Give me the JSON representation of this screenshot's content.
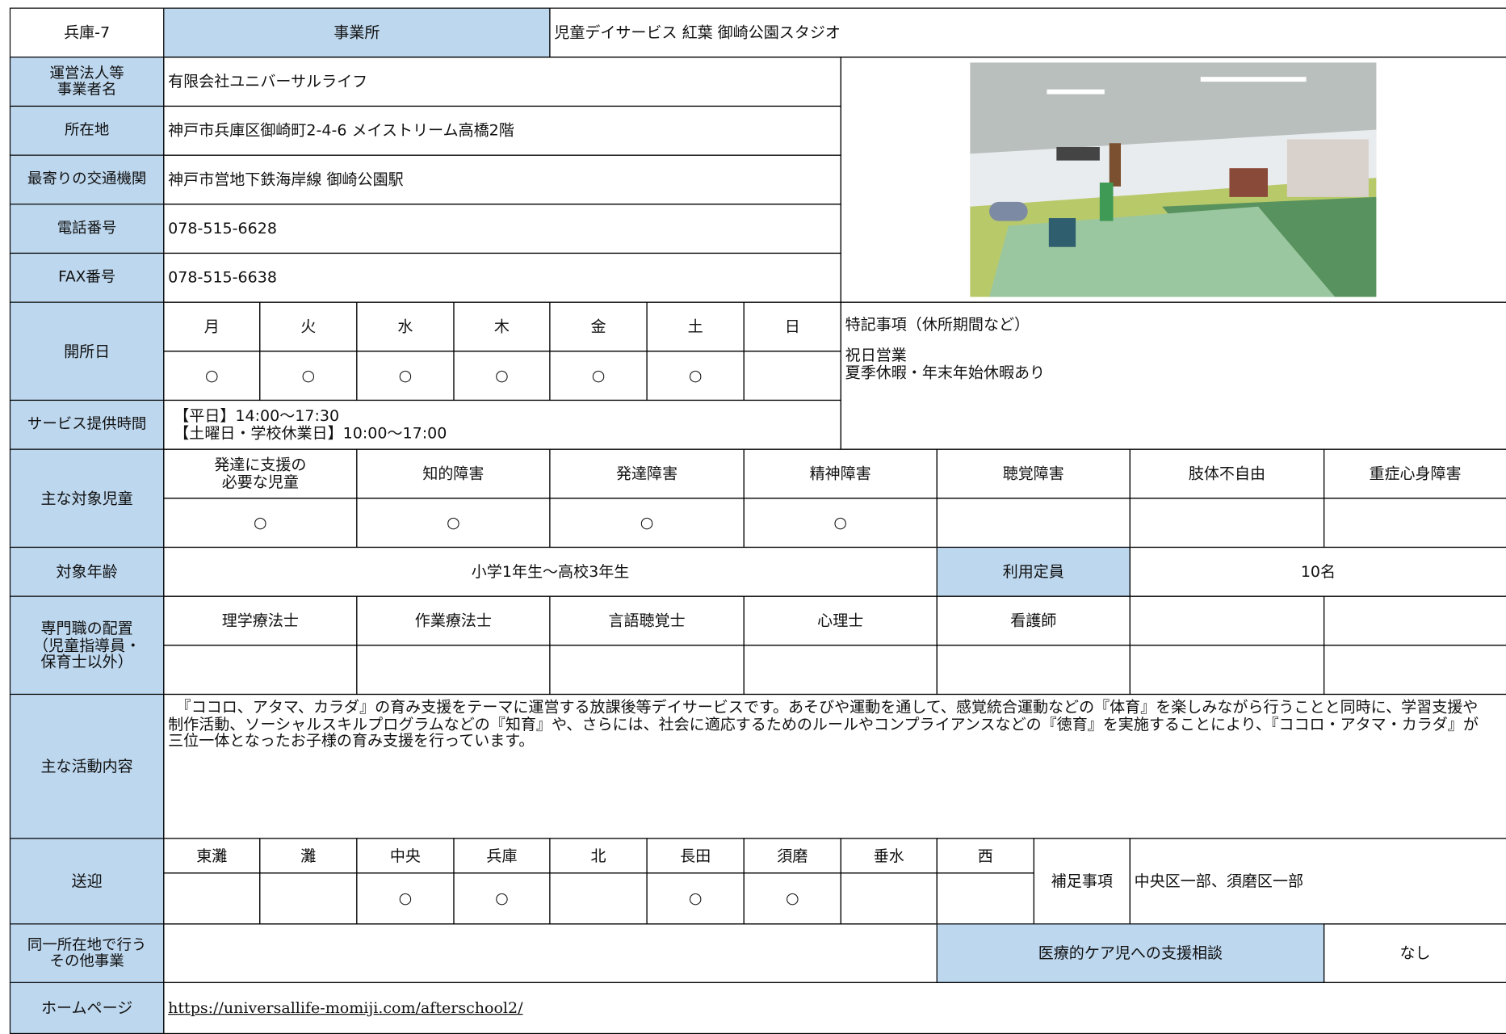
{
  "header": {
    "code": "兵庫-7",
    "label": "事業所",
    "name": "児童デイサービス 紅葉 御崎公園スタジオ"
  },
  "info": [
    {
      "label": "運営法人等\n事業者名",
      "value": "有限会社ユニバーサルライフ"
    },
    {
      "label": "所在地",
      "value": "神戸市兵庫区御崎町2-4-6 メイストリーム高橋2階"
    },
    {
      "label": "最寄りの交通機関",
      "value": "神戸市営地下鉄海岸線 御崎公園駅"
    },
    {
      "label": "電話番号",
      "value": "078-515-6628"
    },
    {
      "label": "FAX番号",
      "value": "078-515-6638"
    }
  ],
  "opening": {
    "label": "開所日",
    "days": [
      "月",
      "火",
      "水",
      "木",
      "金",
      "土",
      "日"
    ],
    "marks": [
      "○",
      "○",
      "○",
      "○",
      "○",
      "○",
      null
    ],
    "notes_title": "特記事項（休所期間など）",
    "notes": "祝日営業\n夏季休暇・年末年始休暇あり"
  },
  "hours": {
    "label": "サービス提供時間",
    "value": "【平日】14:00～17:30\n【土曜日・学校休業日】10:00～17:00"
  },
  "targets": {
    "label": "主な対象児童",
    "categories": [
      "発達に支援の\n必要な児童",
      "知的障害",
      "発達障害",
      "精神障害",
      "聴覚障害",
      "肢体不自由",
      "重症心身障害"
    ],
    "marks": [
      "○",
      "○",
      "○",
      "○",
      null,
      null,
      null
    ]
  },
  "age": {
    "label": "対象年齢",
    "value": "小学1年生～高校3年生",
    "capacity_label": "利用定員",
    "capacity": "10名"
  },
  "specialists": {
    "label": "専門職の配置\n（児童指導員・\n保育士以外）",
    "categories": [
      "理学療法士",
      "作業療法士",
      "言語聴覚士",
      "心理士",
      "看護師",
      null,
      null
    ]
  },
  "activities": {
    "label": "主な活動内容",
    "text": "『ココロ、アタマ、カラダ』の育み支援をテーマに運営する放課後等デイサービスです。あそびや運動を通して、感覚統合運動などの『体育』を楽しみながら行うことと同時に、学習支援や制作活動、ソーシャルスキルプログラムなどの『知育』や、さらには、社会に適応するためのルールやコンプライアンスなどの『徳育』を実施することにより、『ココロ・アタマ・カラダ』が三位一体となったお子様の育み支援を行っています。"
  },
  "transport": {
    "label": "送迎",
    "areas": [
      "東灘",
      "灘",
      "中央",
      "兵庫",
      "北",
      "長田",
      "須磨",
      "垂水",
      "西"
    ],
    "marks": [
      null,
      null,
      "○",
      "○",
      null,
      "○",
      "○",
      null,
      null
    ],
    "note_label": "補足事項",
    "note": "中央区一部、須磨区一部"
  },
  "other": {
    "label": "同一所在地で行う\nその他事業",
    "medical_label": "医療的ケア児への支援相談",
    "medical": "なし"
  },
  "homepage": {
    "label": "ホームページ",
    "url": "https://universallife-momiji.com/afterschool2/"
  }
}
